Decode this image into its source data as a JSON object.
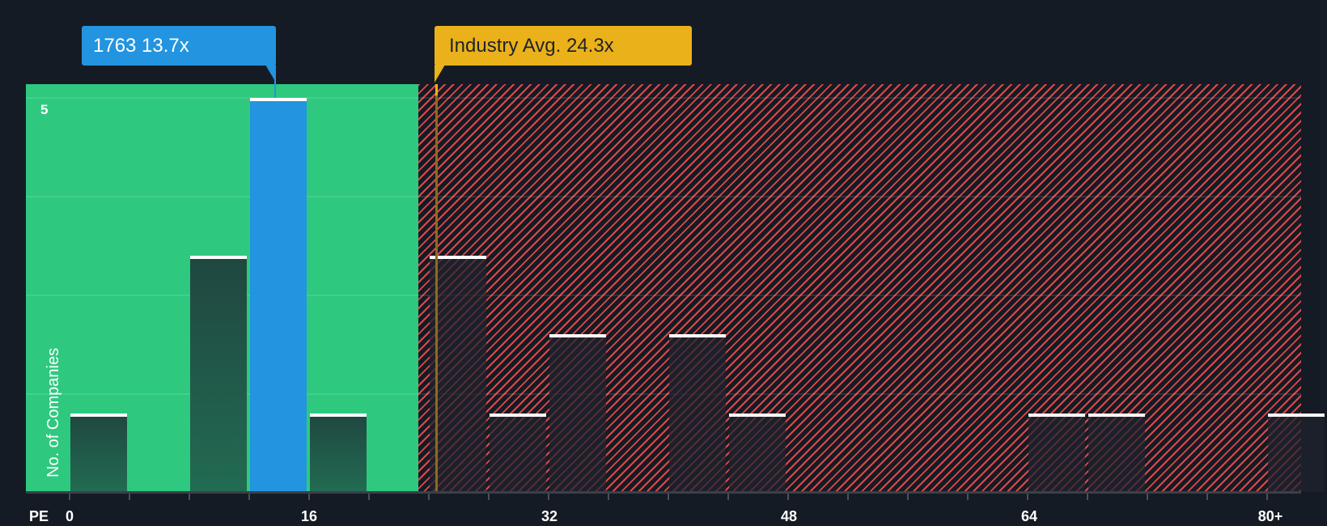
{
  "chart_data": {
    "type": "bar",
    "title": "",
    "xlabel": "PE",
    "ylabel": "No. of Companies",
    "x_ticks": [
      "0",
      "16",
      "32",
      "48",
      "64",
      "80+"
    ],
    "y_ticks": [
      "5"
    ],
    "ylim": [
      0,
      5.2
    ],
    "bin_width": 4,
    "bins": [
      {
        "start": 0,
        "count": 1,
        "type": "peer"
      },
      {
        "start": 8,
        "count": 3,
        "type": "peer"
      },
      {
        "start": 12,
        "count": 5,
        "type": "company"
      },
      {
        "start": 16,
        "count": 1,
        "type": "peer"
      },
      {
        "start": 24,
        "count": 3,
        "type": "peer"
      },
      {
        "start": 28,
        "count": 1,
        "type": "peer"
      },
      {
        "start": 32,
        "count": 2,
        "type": "peer"
      },
      {
        "start": 40,
        "count": 2,
        "type": "peer"
      },
      {
        "start": 44,
        "count": 1,
        "type": "peer"
      },
      {
        "start": 64,
        "count": 1,
        "type": "peer"
      },
      {
        "start": 68,
        "count": 1,
        "type": "peer"
      },
      {
        "start": 80,
        "count": 1,
        "type": "peer",
        "label": "80+"
      }
    ],
    "company": {
      "ticker": "1763",
      "pe": 13.7,
      "label": "1763 13.7x"
    },
    "industry_avg": {
      "pe": 24.3,
      "label": "Industry Avg. 24.3x"
    },
    "zones": {
      "good_below": 25.1
    },
    "grid": true
  },
  "labels": {
    "company_callout": "1763 13.7x",
    "industry_callout": "Industry Avg. 24.3x",
    "y_axis": "No. of Companies",
    "x_axis": "PE",
    "y_tick_5": "5",
    "x_ticks": [
      "0",
      "16",
      "32",
      "48",
      "64",
      "80+"
    ]
  },
  "colors": {
    "background": "#151b24",
    "good_zone": "#2ec97f",
    "bad_hatch": "#e04848",
    "company_bar": "#2394df",
    "industry": "#ebb11a"
  }
}
